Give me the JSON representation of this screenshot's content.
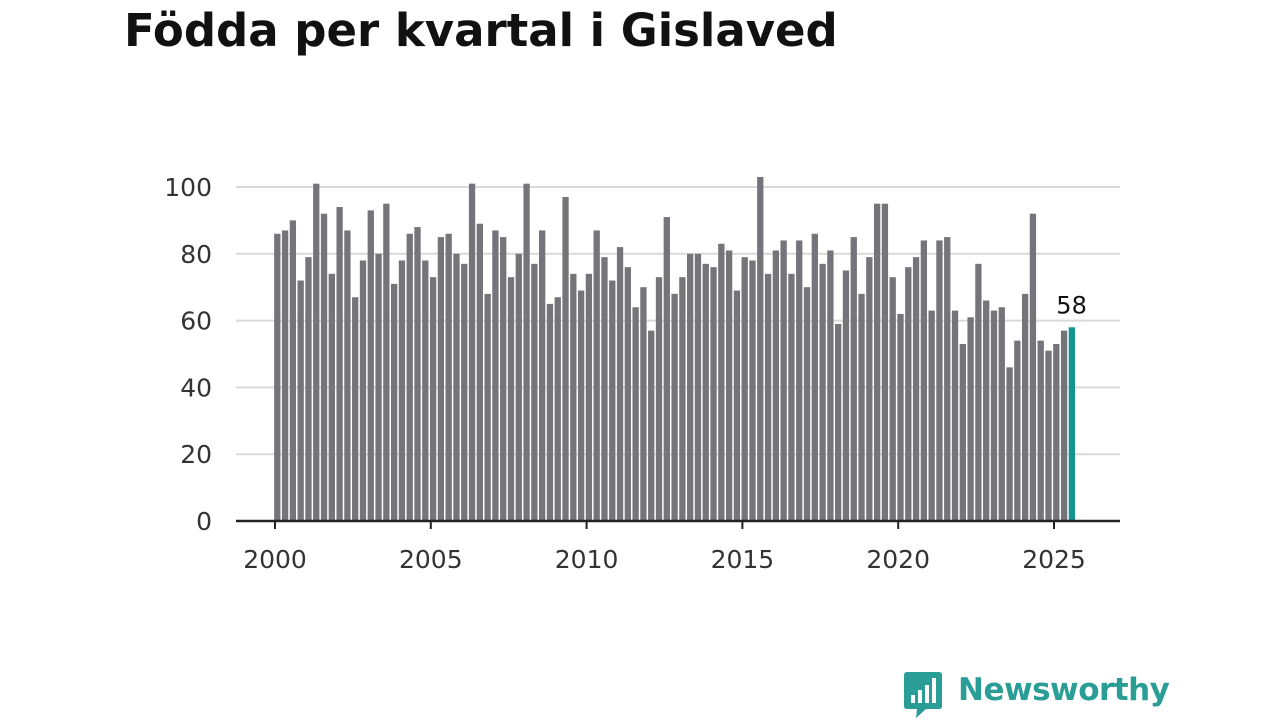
{
  "title": "Födda per kvartal i Gislaved",
  "brand": {
    "name": "Newsworthy",
    "icon": "newsworthy-logo-icon"
  },
  "colors": {
    "bar": "#757478",
    "highlight": "#14958f",
    "grid": "#d9d9d9",
    "axis": "#222222",
    "brand": "#2a9d97"
  },
  "chart_data": {
    "type": "bar",
    "title": "Födda per kvartal i Gislaved",
    "xlabel": "",
    "ylabel": "",
    "x_start": 2000,
    "x_step": 0.25,
    "ylim": [
      0,
      105
    ],
    "xlim": [
      1999.75,
      2026.4
    ],
    "y_ticks": [
      0,
      20,
      40,
      60,
      80,
      100
    ],
    "x_ticks": [
      2000,
      2005,
      2010,
      2015,
      2020,
      2025
    ],
    "grid": true,
    "highlight_last": true,
    "last_label": "58",
    "values": [
      86,
      87,
      90,
      72,
      79,
      101,
      92,
      74,
      94,
      87,
      67,
      78,
      93,
      80,
      95,
      71,
      78,
      86,
      88,
      78,
      73,
      85,
      86,
      80,
      77,
      101,
      89,
      68,
      87,
      85,
      73,
      80,
      101,
      77,
      87,
      65,
      67,
      97,
      74,
      69,
      74,
      87,
      79,
      72,
      82,
      76,
      64,
      70,
      57,
      73,
      91,
      68,
      73,
      80,
      80,
      77,
      76,
      83,
      81,
      69,
      79,
      78,
      103,
      74,
      81,
      84,
      74,
      84,
      70,
      86,
      77,
      81,
      59,
      75,
      85,
      68,
      79,
      95,
      95,
      73,
      62,
      76,
      79,
      84,
      63,
      84,
      85,
      63,
      53,
      61,
      77,
      66,
      63,
      64,
      46,
      54,
      68,
      92,
      54,
      51,
      53,
      57,
      58
    ]
  }
}
